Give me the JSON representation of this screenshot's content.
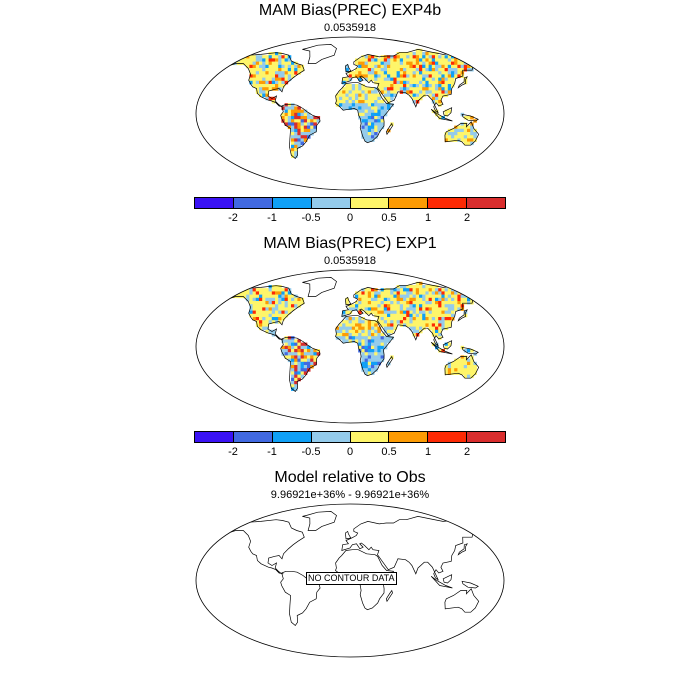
{
  "panels": [
    {
      "title": "MAM Bias(PREC) EXP4b",
      "subtitle": "0.0535918",
      "has_data": true
    },
    {
      "title": "MAM Bias(PREC) EXP1",
      "subtitle": "0.0535918",
      "has_data": true
    },
    {
      "title": "Model relative to Obs",
      "subtitle": "9.96921e+36% - 9.96921e+36%",
      "has_data": false,
      "notice": "NO CONTOUR DATA"
    }
  ],
  "colorbar": {
    "colors": [
      "#3a12f4",
      "#4169e1",
      "#10a0f6",
      "#94cbeb",
      "#fef56a",
      "#fc9b04",
      "#fd2a04",
      "#d92d2d"
    ],
    "tick_labels": [
      "-2",
      "-1",
      "-0.5",
      "0",
      "0.5",
      "1",
      "2"
    ]
  }
}
